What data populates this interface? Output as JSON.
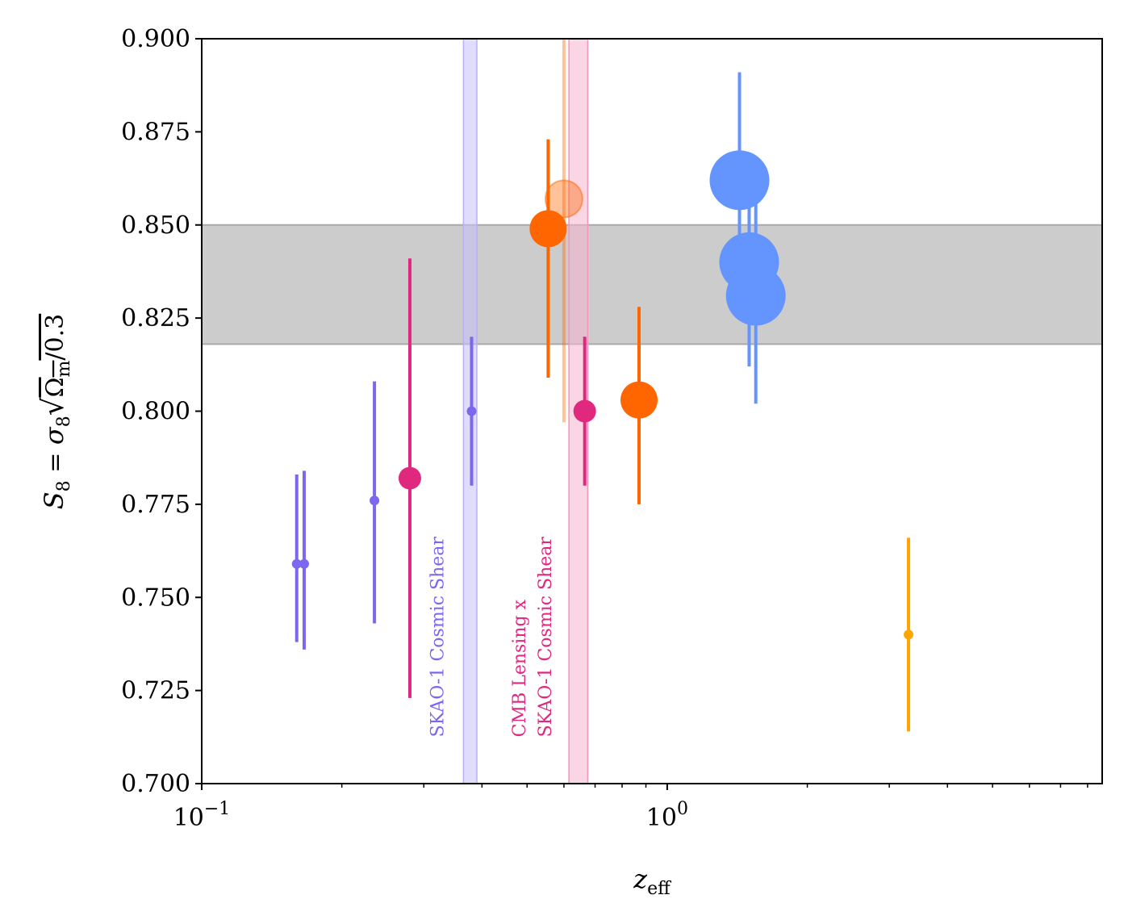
{
  "chart_data": {
    "type": "scatter",
    "x_scale": "log",
    "xlim": [
      0.1,
      8.6
    ],
    "ylim": [
      0.7,
      0.9
    ],
    "xlabel": "z_eff",
    "ylabel": "S_8 = σ_8 √(Ω_m/0.3)",
    "x_ticks": [
      {
        "value": 0.1,
        "base": "10",
        "exp": "−1"
      },
      {
        "value": 1,
        "base": "10",
        "exp": "0"
      }
    ],
    "y_ticks": [
      "0.700",
      "0.725",
      "0.750",
      "0.775",
      "0.800",
      "0.825",
      "0.850",
      "0.875",
      "0.900"
    ],
    "grid": false,
    "legend": "none",
    "band": {
      "y_low": 0.818,
      "y_high": 0.85,
      "color": "#cccccc",
      "edge": "#aaaaaa"
    },
    "vbands": [
      {
        "x_low": 0.365,
        "x_high": 0.39,
        "color": "#c7c0fa",
        "edge": "#b7b0f7"
      },
      {
        "x_low": 0.615,
        "x_high": 0.675,
        "color": "#f5b4cf",
        "edge": "#ef97bb"
      }
    ],
    "annotations": [
      {
        "text": "SKAO-1 Cosmic Shear",
        "x": 0.32,
        "y_bottom": 0.7125,
        "color": "#7b68ee"
      },
      {
        "text": "CMB Lensing x",
        "x": 0.48,
        "y_bottom": 0.7125,
        "color": "#e0287f"
      },
      {
        "text": "SKAO-1 Cosmic Shear",
        "x": 0.545,
        "y_bottom": 0.7125,
        "color": "#e0287f"
      }
    ],
    "series": [
      {
        "color": "#7b68ee",
        "marker_r": 6,
        "alpha": 1,
        "points": [
          {
            "x": 0.16,
            "y": 0.759,
            "ylow": 0.738,
            "yhigh": 0.783
          },
          {
            "x": 0.166,
            "y": 0.759,
            "ylow": 0.736,
            "yhigh": 0.784
          },
          {
            "x": 0.235,
            "y": 0.776,
            "ylow": 0.743,
            "yhigh": 0.808
          },
          {
            "x": 0.38,
            "y": 0.8,
            "ylow": 0.78,
            "yhigh": 0.82
          }
        ]
      },
      {
        "color": "#e0287f",
        "marker_r": 14,
        "alpha": 1,
        "points": [
          {
            "x": 0.28,
            "y": 0.782,
            "ylow": 0.723,
            "yhigh": 0.841
          },
          {
            "x": 0.665,
            "y": 0.8,
            "ylow": 0.78,
            "yhigh": 0.82
          }
        ]
      },
      {
        "color": "#ff6600",
        "marker_r": 23,
        "alpha": 1,
        "points": [
          {
            "x": 0.555,
            "y": 0.849,
            "ylow": 0.809,
            "yhigh": 0.873
          },
          {
            "x": 0.87,
            "y": 0.803,
            "ylow": 0.775,
            "yhigh": 0.828
          }
        ]
      },
      {
        "color": "#ff6600",
        "marker_r": 23,
        "alpha": 0.4,
        "points": [
          {
            "x": 0.6,
            "y": 0.857,
            "ylow": 0.797,
            "yhigh": 0.9
          }
        ]
      },
      {
        "color": "#6495ff",
        "marker_r": 37,
        "alpha": 1,
        "points": [
          {
            "x": 1.43,
            "y": 0.862,
            "ylow": 0.832,
            "yhigh": 0.891
          },
          {
            "x": 1.5,
            "y": 0.84,
            "ylow": 0.812,
            "yhigh": 0.867
          },
          {
            "x": 1.55,
            "y": 0.831,
            "ylow": 0.802,
            "yhigh": 0.86
          }
        ]
      },
      {
        "color": "#ffa500",
        "marker_r": 6,
        "alpha": 1,
        "points": [
          {
            "x": 3.3,
            "y": 0.74,
            "ylow": 0.714,
            "yhigh": 0.766
          }
        ]
      }
    ]
  }
}
